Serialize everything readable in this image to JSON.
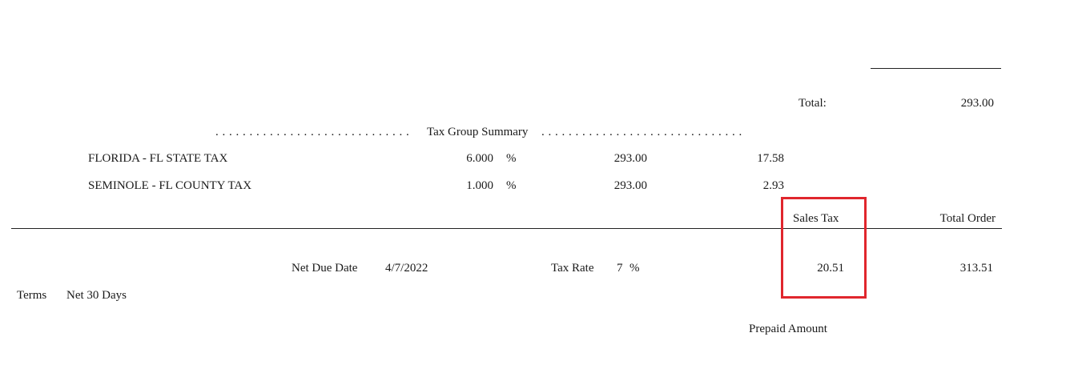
{
  "totals": {
    "total_label": "Total:",
    "total_value": "293.00"
  },
  "tax_group_summary": {
    "dots_left": ". . . . . . . . . . . . . . . . . . . . . . . . . . . . .",
    "title": "Tax Group Summary",
    "dots_right": ". . . . . . . . . . . . . . . . . . . . . . . . . . . . . ."
  },
  "tax_rows": [
    {
      "name": "FLORIDA - FL STATE TAX",
      "rate": "6.000",
      "percent": "%",
      "base": "293.00",
      "amount": "17.58"
    },
    {
      "name": "SEMINOLE - FL COUNTY TAX",
      "rate": "1.000",
      "percent": "%",
      "base": "293.00",
      "amount": "2.93"
    }
  ],
  "summary": {
    "sales_tax_label": "Sales Tax",
    "total_order_label": "Total Order",
    "net_due_date_label": "Net Due Date",
    "net_due_date_value": "4/7/2022",
    "tax_rate_label": "Tax Rate",
    "tax_rate_value": "7",
    "tax_rate_unit": "%",
    "sales_tax_value": "20.51",
    "total_order_value": "313.51",
    "terms_label": "Terms",
    "terms_value": "Net 30 Days",
    "prepaid_amount_label": "Prepaid Amount"
  },
  "colors": {
    "highlight": "#e0262d",
    "text": "#1a1a1a",
    "rule": "#222222"
  }
}
